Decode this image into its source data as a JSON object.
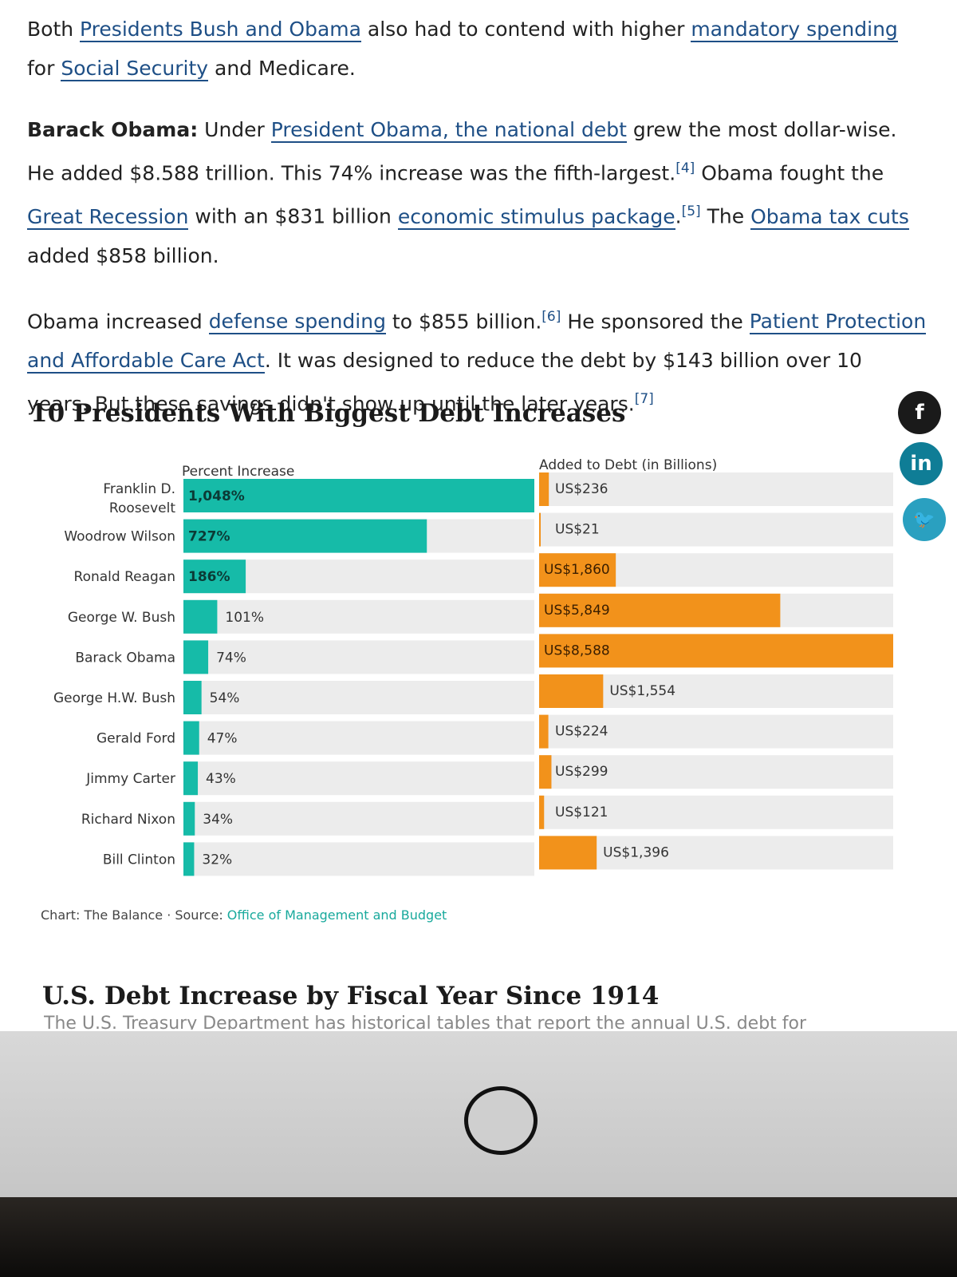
{
  "paragraphs": {
    "p1": {
      "t1": "Both ",
      "l1": "Presidents Bush and Obama",
      "t2": " also had to contend with higher ",
      "l2": "mandatory spending",
      "t3": " for ",
      "l3": "Social Security",
      "t4": " and Medicare."
    },
    "p2": {
      "b1": "Barack Obama:",
      "t1": " Under ",
      "l1": "President Obama, the national debt",
      "t2": " grew the most dollar-wise. He added $8.588 trillion. This 74% increase was the fifth-largest.",
      "s1": "[4]",
      "t3": " Obama fought the ",
      "l2": "Great Recession",
      "t4": " with an $831 billion ",
      "l3": "economic stimulus package",
      "t5": ".",
      "s2": "[5]",
      "t6": " The ",
      "l4": "Obama tax cuts",
      "t7": " added $858 billion."
    },
    "p3": {
      "t1": "Obama increased ",
      "l1": "defense spending",
      "t2": " to $855 billion.",
      "s1": "[6]",
      "t3": " He sponsored the ",
      "l2": "Patient Protection and Affordable Care Act",
      "t4": ". It was designed to reduce the debt by $143 billion over 10 years. But these savings didn't show up until the later years.",
      "s2": "[7]"
    }
  },
  "chart_heading": "10 Presidents With Biggest Debt Increases",
  "social": {
    "facebook": "f",
    "linkedin": "in",
    "twitter": "🐦"
  },
  "chart_data": {
    "type": "bar",
    "title": "10 Presidents With Biggest Debt Increases",
    "categories": [
      "Franklin D. Roosevelt",
      "Woodrow Wilson",
      "Ronald Reagan",
      "George W. Bush",
      "Barack Obama",
      "George H.W. Bush",
      "Gerald Ford",
      "Jimmy Carter",
      "Richard Nixon",
      "Bill Clinton"
    ],
    "series": [
      {
        "name": "Percent Increase",
        "values": [
          1048,
          727,
          186,
          101,
          74,
          54,
          47,
          43,
          34,
          32
        ],
        "labels": [
          "1,048%",
          "727%",
          "186%",
          "101%",
          "74%",
          "54%",
          "47%",
          "43%",
          "34%",
          "32%"
        ],
        "color": "#16bba8",
        "max": 1048
      },
      {
        "name": "Added to Debt (in Billions)",
        "values": [
          236,
          21,
          1860,
          5849,
          8588,
          1554,
          224,
          299,
          121,
          1396
        ],
        "labels": [
          "US$236",
          "US$21",
          "US$1,860",
          "US$5,849",
          "US$8,588",
          "US$1,554",
          "US$224",
          "US$299",
          "US$121",
          "US$1,396"
        ],
        "color": "#f2921b",
        "max": 8588
      }
    ],
    "track_color": "#ececec",
    "legend": "none"
  },
  "credit": {
    "prefix": "Chart: The Balance · Source: ",
    "source": "Office of Management and Budget"
  },
  "next_heading": "U.S. Debt Increase by Fiscal Year Since 1914",
  "next_text": "The U.S. Treasury Department has historical tables that report the annual U.S. debt for"
}
